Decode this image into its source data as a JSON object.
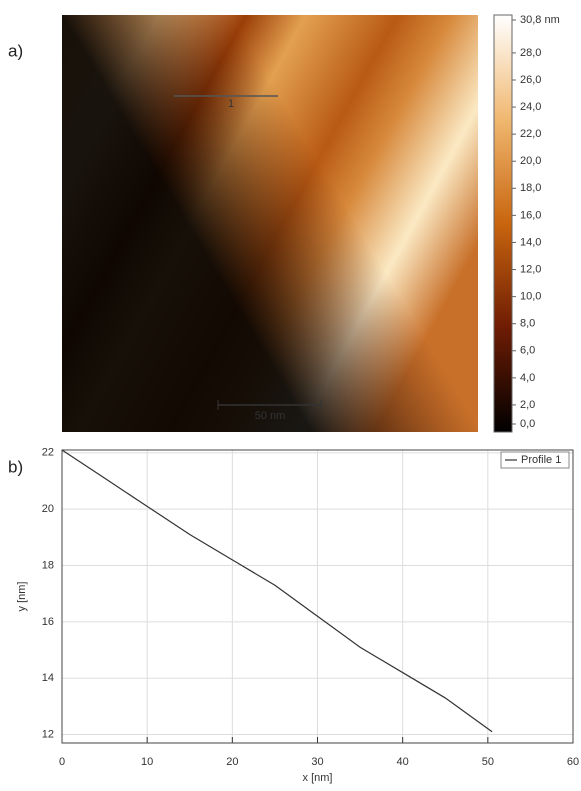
{
  "chart_data": [
    {
      "type": "image",
      "label": "a)",
      "colorbar_lim": [
        0,
        30.8
      ],
      "colorbar_ticks": [
        {
          "value": 0,
          "label": "0,0"
        },
        {
          "value": 2,
          "label": "2,0"
        },
        {
          "value": 4,
          "label": "4,0"
        },
        {
          "value": 6,
          "label": "6,0"
        },
        {
          "value": 8,
          "label": "8,0"
        },
        {
          "value": 10,
          "label": "10,0"
        },
        {
          "value": 12,
          "label": "12,0"
        },
        {
          "value": 14,
          "label": "14,0"
        },
        {
          "value": 16,
          "label": "16,0"
        },
        {
          "value": 18,
          "label": "18,0"
        },
        {
          "value": 20,
          "label": "20,0"
        },
        {
          "value": 22,
          "label": "22,0"
        },
        {
          "value": 24,
          "label": "24,0"
        },
        {
          "value": 26,
          "label": "26,0"
        },
        {
          "value": 28,
          "label": "28,0"
        },
        {
          "value": 30.8,
          "label": "30,8 nm"
        }
      ],
      "profile_label": "1",
      "scale_bar": "50 nm"
    },
    {
      "type": "line",
      "label": "b)",
      "xlabel": "x [nm]",
      "ylabel": "y [nm]",
      "x": [
        0,
        5,
        10,
        15,
        20,
        25,
        30,
        35,
        40,
        45,
        50.5
      ],
      "series": [
        {
          "name": "Profile 1",
          "color": "#333333",
          "values": [
            22.1,
            21.1,
            20.1,
            19.1,
            18.2,
            17.3,
            16.2,
            15.1,
            14.2,
            13.3,
            12.1
          ]
        }
      ],
      "xlim": [
        0,
        60
      ],
      "ylim": [
        11.7,
        22.1
      ],
      "xticks": [
        0,
        10,
        20,
        30,
        40,
        50,
        60
      ],
      "yticks": [
        12,
        14,
        16,
        18,
        20,
        22
      ],
      "grid": true,
      "legend": "upper right"
    }
  ]
}
